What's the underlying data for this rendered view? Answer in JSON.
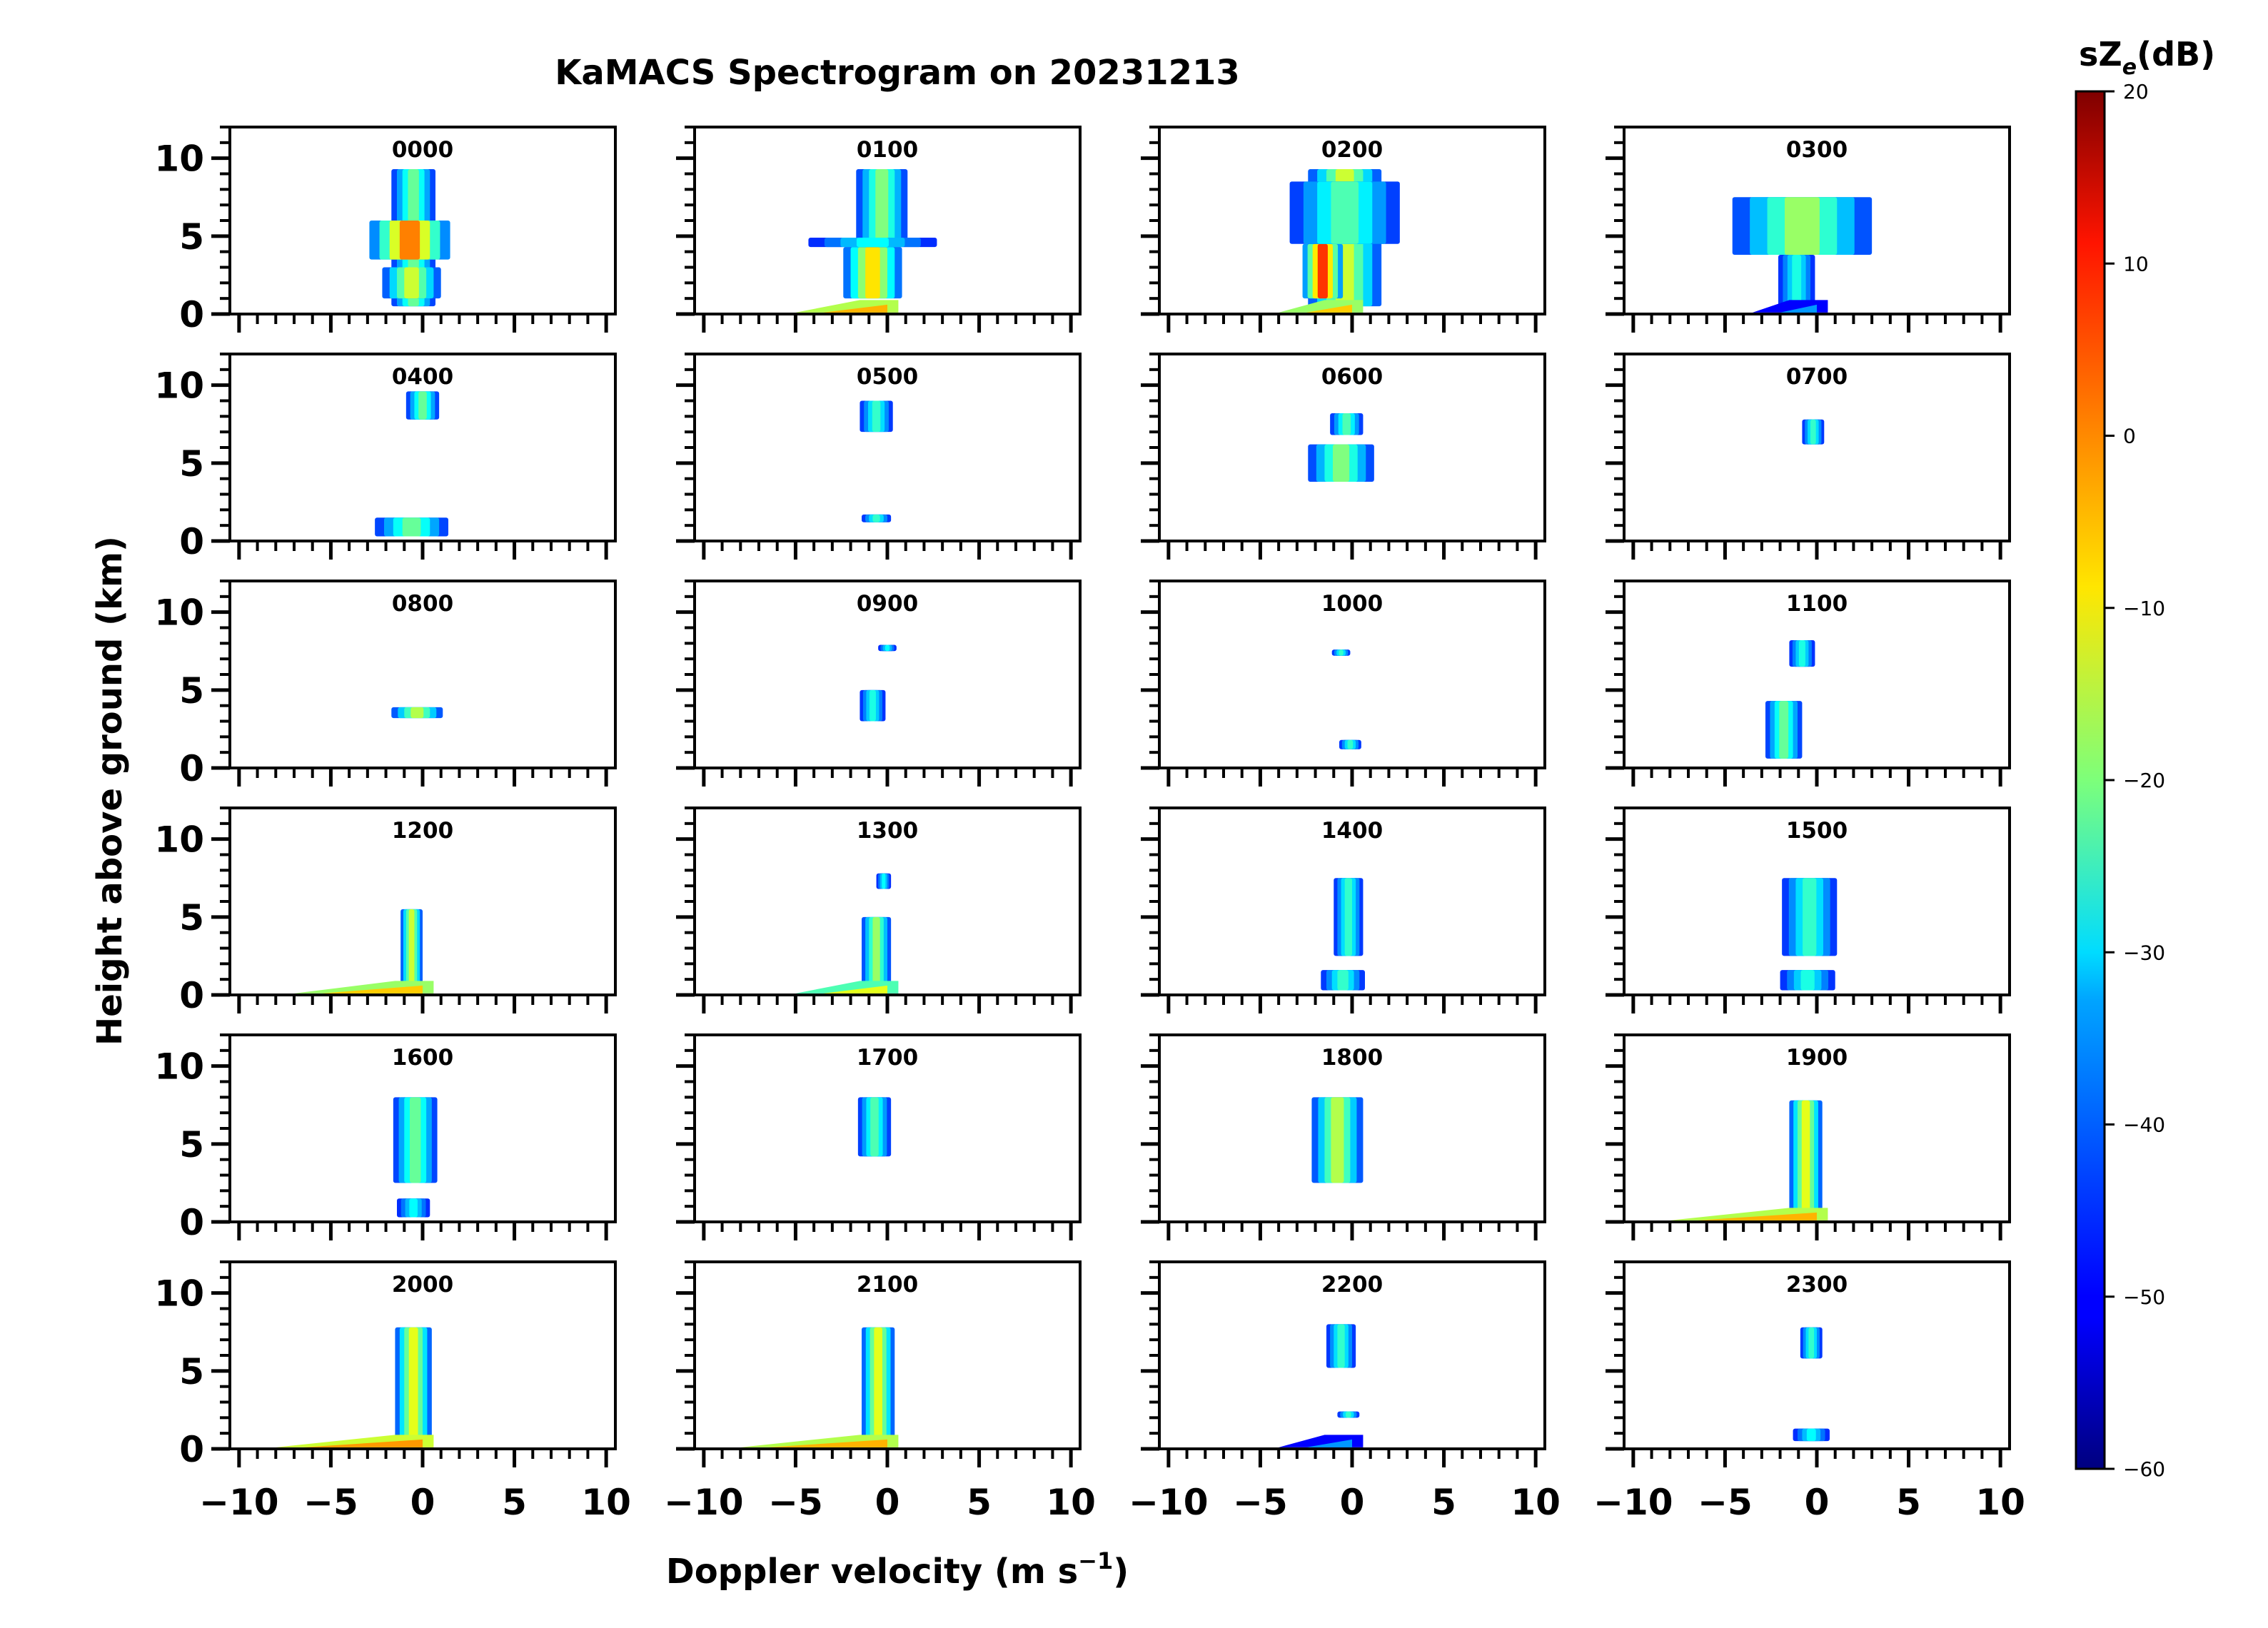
{
  "chart_data": {
    "type": "heatmap",
    "title": "KaMACS Spectrogram on 20231213",
    "xlabel": "Doppler velocity (m s",
    "xlabel_superscript": "−1",
    "xlabel_suffix": ")",
    "ylabel": "Height above ground (km)",
    "xlim": [
      -10.5,
      10.5
    ],
    "ylim": [
      0,
      12
    ],
    "x_ticks": [
      -10,
      -5,
      0,
      5,
      10
    ],
    "x_tick_labels": [
      "−10",
      "−5",
      "0",
      "5",
      "10"
    ],
    "y_ticks": [
      0,
      5,
      10
    ],
    "y_tick_labels": [
      "0",
      "5",
      "10"
    ],
    "colorbar": {
      "label_main": "sZ",
      "label_sub": "e",
      "label_suffix": "(dB)",
      "range": [
        -60,
        20
      ],
      "ticks": [
        20,
        10,
        0,
        -10,
        -20,
        -30,
        -40,
        -50,
        -60
      ],
      "tick_labels": [
        "20",
        "10",
        "0",
        "−10",
        "−20",
        "−30",
        "−40",
        "−50",
        "−60"
      ],
      "colormap": "jet"
    },
    "panels": [
      {
        "time": "0000",
        "layers": [
          [
            0.5,
            9.3,
            -0.5,
            1.2,
            -22
          ],
          [
            3.5,
            6.0,
            -0.7,
            2.2,
            0
          ],
          [
            1.0,
            3.0,
            -0.6,
            1.6,
            -14
          ]
        ],
        "ground": null
      },
      {
        "time": "0100",
        "layers": [
          [
            4.5,
            9.3,
            -0.3,
            1.4,
            -20
          ],
          [
            1.0,
            4.3,
            -0.8,
            1.6,
            -8
          ],
          [
            4.3,
            4.9,
            -0.8,
            3.5,
            -30
          ]
        ],
        "ground": [
          -5,
          0,
          -4
        ]
      },
      {
        "time": "0200",
        "layers": [
          [
            0.5,
            9.3,
            -0.4,
            2.0,
            -14
          ],
          [
            1.0,
            4.5,
            -1.6,
            1.1,
            6
          ],
          [
            4.5,
            8.5,
            -0.4,
            3.0,
            -24
          ]
        ],
        "ground": [
          -4,
          0,
          -6
        ]
      },
      {
        "time": "0300",
        "layers": [
          [
            0.3,
            3.8,
            -1.1,
            1.0,
            -28
          ],
          [
            3.8,
            7.5,
            -0.8,
            3.8,
            -18
          ]
        ],
        "ground": [
          -3.5,
          0,
          -38
        ]
      },
      {
        "time": "0400",
        "layers": [
          [
            7.8,
            9.6,
            0.0,
            0.9,
            -22
          ],
          [
            0.3,
            1.5,
            -0.6,
            2.0,
            -22
          ]
        ],
        "ground": null
      },
      {
        "time": "0500",
        "layers": [
          [
            7.0,
            9.0,
            -0.6,
            0.9,
            -26
          ],
          [
            1.2,
            1.7,
            -0.6,
            0.8,
            -26
          ]
        ],
        "ground": null
      },
      {
        "time": "0600",
        "layers": [
          [
            6.8,
            8.2,
            -0.3,
            0.9,
            -24
          ],
          [
            3.8,
            6.2,
            -0.6,
            1.8,
            -20
          ]
        ],
        "ground": null
      },
      {
        "time": "0700",
        "layers": [
          [
            6.2,
            7.8,
            -0.2,
            0.6,
            -26
          ]
        ],
        "ground": null
      },
      {
        "time": "0800",
        "layers": [
          [
            3.2,
            3.9,
            -0.3,
            1.4,
            -16
          ]
        ],
        "ground": null
      },
      {
        "time": "0900",
        "layers": [
          [
            3.0,
            5.0,
            -0.8,
            0.7,
            -28
          ],
          [
            7.5,
            7.9,
            0.0,
            0.5,
            -30
          ]
        ],
        "ground": null
      },
      {
        "time": "1000",
        "layers": [
          [
            7.2,
            7.6,
            -0.6,
            0.5,
            -26
          ],
          [
            1.2,
            1.8,
            -0.1,
            0.6,
            -26
          ]
        ],
        "ground": null
      },
      {
        "time": "1100",
        "layers": [
          [
            6.5,
            8.2,
            -0.8,
            0.7,
            -28
          ],
          [
            0.6,
            4.3,
            -1.8,
            1.0,
            -22
          ]
        ],
        "ground": null
      },
      {
        "time": "1200",
        "layers": [
          [
            0.5,
            5.5,
            -0.6,
            0.6,
            -14
          ]
        ],
        "ground": [
          -7,
          0,
          -6
        ]
      },
      {
        "time": "1300",
        "layers": [
          [
            0.5,
            5.0,
            -0.6,
            0.8,
            -18
          ],
          [
            6.8,
            7.8,
            -0.2,
            0.4,
            -30
          ]
        ],
        "ground": [
          -5,
          0,
          -12
        ]
      },
      {
        "time": "1400",
        "layers": [
          [
            2.5,
            7.5,
            -0.2,
            0.8,
            -26
          ],
          [
            0.3,
            1.6,
            -0.5,
            1.2,
            -26
          ]
        ],
        "ground": null
      },
      {
        "time": "1500",
        "layers": [
          [
            2.5,
            7.5,
            -0.4,
            1.5,
            -26
          ],
          [
            0.3,
            1.6,
            -0.5,
            1.5,
            -28
          ]
        ],
        "ground": null
      },
      {
        "time": "1600",
        "layers": [
          [
            2.5,
            8.0,
            -0.4,
            1.2,
            -22
          ],
          [
            0.3,
            1.5,
            -0.5,
            0.9,
            -30
          ]
        ],
        "ground": null
      },
      {
        "time": "1700",
        "layers": [
          [
            4.2,
            8.0,
            -0.7,
            0.9,
            -24
          ]
        ],
        "ground": null
      },
      {
        "time": "1800",
        "layers": [
          [
            2.5,
            8.0,
            -0.8,
            1.4,
            -16
          ]
        ],
        "ground": null
      },
      {
        "time": "1900",
        "layers": [
          [
            0.3,
            7.8,
            -0.6,
            0.9,
            -12
          ]
        ],
        "ground": [
          -8,
          0,
          -4
        ]
      },
      {
        "time": "2000",
        "layers": [
          [
            0.3,
            7.8,
            -0.5,
            1.0,
            -12
          ]
        ],
        "ground": [
          -8,
          0,
          -2
        ]
      },
      {
        "time": "2100",
        "layers": [
          [
            0.3,
            7.8,
            -0.5,
            0.9,
            -12
          ]
        ],
        "ground": [
          -8,
          0,
          -4
        ]
      },
      {
        "time": "2200",
        "layers": [
          [
            5.2,
            8.0,
            -0.6,
            0.8,
            -26
          ],
          [
            2.0,
            2.4,
            -0.2,
            0.6,
            -26
          ]
        ],
        "ground": [
          -4,
          0,
          -38
        ]
      },
      {
        "time": "2300",
        "layers": [
          [
            5.8,
            7.8,
            -0.3,
            0.6,
            -26
          ],
          [
            0.5,
            1.3,
            -0.3,
            1.0,
            -30
          ]
        ],
        "ground": null
      }
    ]
  }
}
